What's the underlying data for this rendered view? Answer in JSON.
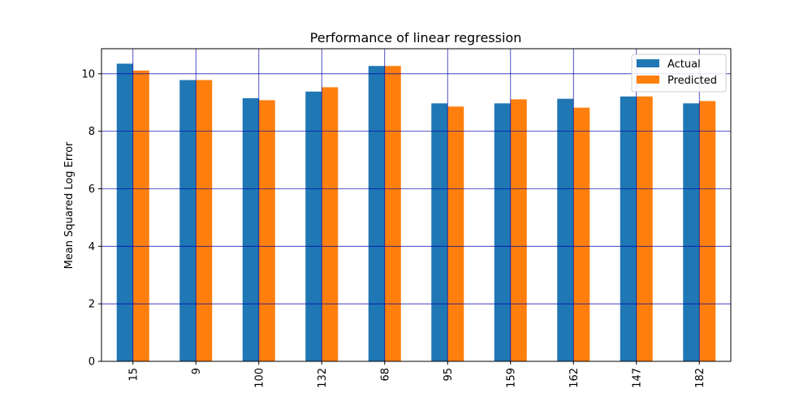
{
  "chart_data": {
    "type": "bar",
    "title": "Performance of linear regression",
    "xlabel": "",
    "ylabel": "Mean Squared Log Error",
    "categories": [
      "15",
      "9",
      "100",
      "132",
      "68",
      "95",
      "159",
      "162",
      "147",
      "182"
    ],
    "series": [
      {
        "name": "Actual",
        "color": "#1f77b4",
        "values": [
          10.35,
          9.78,
          9.15,
          9.38,
          10.27,
          8.97,
          8.97,
          9.13,
          9.21,
          8.97
        ]
      },
      {
        "name": "Predicted",
        "color": "#ff7f0e",
        "values": [
          10.11,
          9.78,
          9.08,
          9.53,
          10.27,
          8.86,
          9.11,
          8.82,
          9.21,
          9.05
        ]
      }
    ],
    "ylim": [
      0,
      10.87
    ],
    "yticks": [
      "0",
      "2",
      "4",
      "6",
      "8",
      "10"
    ],
    "grid": true,
    "grid_color": "#0000aa",
    "legend_position": "top-right",
    "xtick_rotation": "vertical"
  }
}
